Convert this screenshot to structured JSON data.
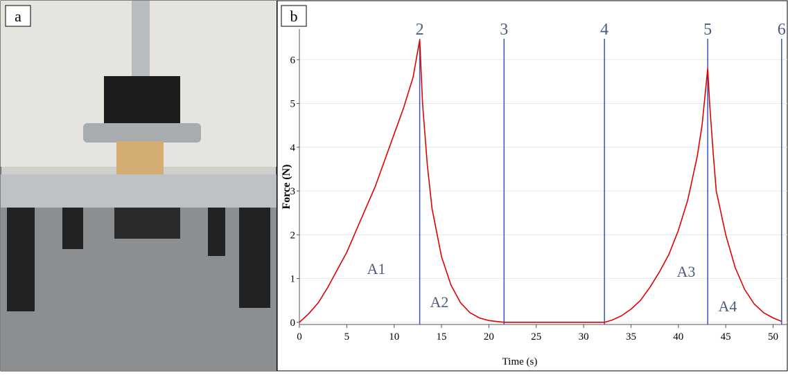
{
  "panel_labels": [
    "a",
    "b"
  ],
  "chart_data": {
    "type": "line",
    "xlabel": "Time (s)",
    "ylabel": "Force (N)",
    "x": [
      0,
      1,
      2,
      3,
      4,
      5,
      6,
      7,
      8,
      9,
      10,
      11,
      12,
      12.7,
      13,
      13.5,
      14,
      15,
      16,
      17,
      18,
      19,
      20,
      21.6,
      25,
      30,
      32.2,
      33,
      34,
      35,
      36,
      37,
      38,
      39,
      40,
      41,
      42,
      42.5,
      43.1,
      43.3,
      43.7,
      44,
      45,
      46,
      47,
      48,
      49,
      50,
      50.9
    ],
    "series": [
      {
        "color": "#e00000",
        "values": [
          0,
          0.2,
          0.45,
          0.8,
          1.2,
          1.6,
          2.1,
          2.6,
          3.1,
          3.7,
          4.3,
          4.9,
          5.6,
          6.45,
          5.0,
          3.6,
          2.6,
          1.5,
          0.85,
          0.45,
          0.22,
          0.1,
          0.04,
          0,
          0,
          0,
          0,
          0.05,
          0.15,
          0.3,
          0.5,
          0.8,
          1.15,
          1.55,
          2.1,
          2.8,
          3.8,
          4.5,
          5.8,
          5.0,
          3.8,
          3.0,
          2.0,
          1.25,
          0.75,
          0.42,
          0.22,
          0.1,
          0.02
        ]
      }
    ],
    "xlim": [
      0,
      51.5
    ],
    "ylim": [
      -0.05,
      6.7
    ],
    "xticks": [
      0,
      5,
      10,
      15,
      20,
      25,
      30,
      35,
      40,
      45,
      50
    ],
    "yticks": [
      0,
      1,
      2,
      3,
      4,
      5,
      6
    ],
    "grid": true,
    "markers": [
      {
        "label": "2",
        "x": 12.7
      },
      {
        "label": "3",
        "x": 21.6
      },
      {
        "label": "4",
        "x": 32.2
      },
      {
        "label": "5",
        "x": 43.1
      },
      {
        "label": "6",
        "x": 50.9
      }
    ],
    "marker_color": "#3355bb",
    "annotations": [
      "A1",
      "A2",
      "A3",
      "A4"
    ]
  }
}
